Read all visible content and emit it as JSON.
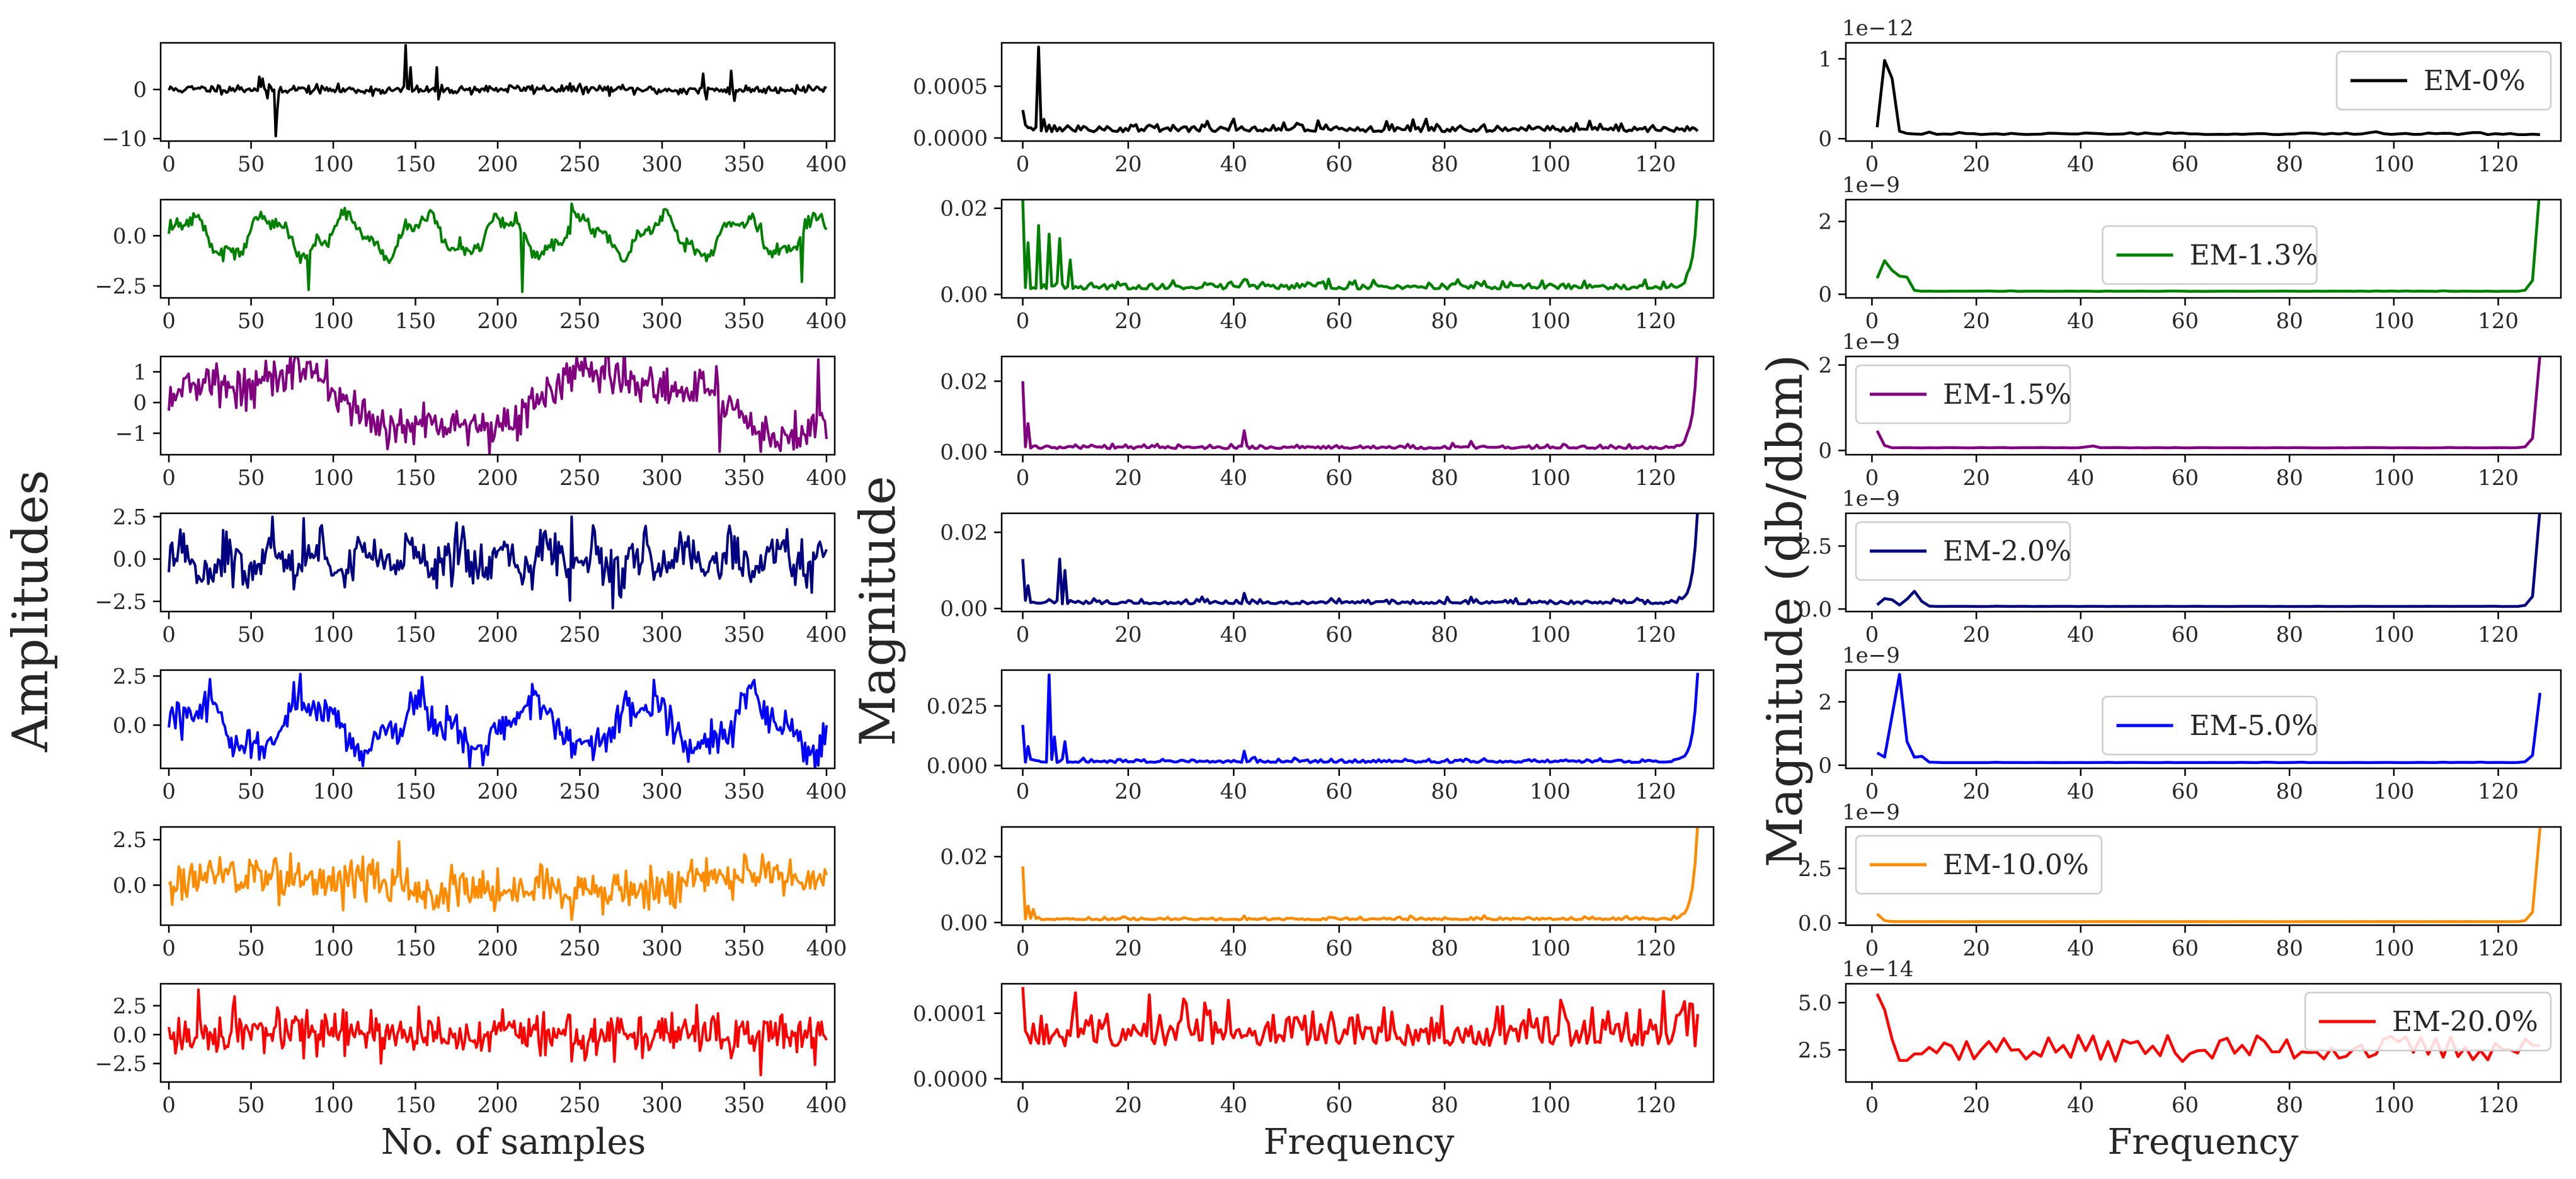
{
  "chart_data": {
    "type": "line",
    "title": "",
    "layout": "grid of 7 rows by 3 columns; columns: time-domain signal, frequency spectrum, power spectrum",
    "ylabels": {
      "col1": "Amplitudes",
      "col2": "Magnitude",
      "col3": "Magnitude (db/dbm)"
    },
    "xlabels": {
      "col1": "No. of samples",
      "col2": "Frequency",
      "col3": "Frequency"
    },
    "x_ticks_time": [
      "0",
      "50",
      "100",
      "150",
      "200",
      "250",
      "300",
      "350",
      "400"
    ],
    "x_ticks_freq": [
      "0",
      "20",
      "40",
      "60",
      "80",
      "100",
      "120"
    ],
    "rows": [
      {
        "label": "EM-0%",
        "color": "#000000",
        "legend_pos": "top-right",
        "time": {
          "xlim": [
            -5,
            405
          ],
          "ylim": [
            -10.5,
            9.5
          ],
          "yticks": [
            0,
            -10
          ],
          "ytick_labels": [
            "0",
            "−10"
          ],
          "base_amplitude": 0.6,
          "noise": 0.45,
          "wave_amp": 0,
          "wave_period": 120,
          "seed": 11,
          "spikes": [
            [
              65,
              -9.5
            ],
            [
              66,
              -4
            ],
            [
              144,
              9
            ],
            [
              147,
              4.5
            ],
            [
              163,
              4.5
            ],
            [
              164,
              -2
            ],
            [
              55,
              2.6
            ],
            [
              57,
              2.2
            ],
            [
              60,
              -1.8
            ],
            [
              325,
              3.2
            ],
            [
              327,
              -2
            ],
            [
              342,
              3.8
            ],
            [
              344,
              -2.3
            ]
          ]
        },
        "freq": {
          "xlim": [
            -4,
            131
          ],
          "ylim": [
            -3e-05,
            0.00092
          ],
          "yticks": [
            0,
            0.0005
          ],
          "ytick_labels": [
            "0.0000",
            "0.0005"
          ],
          "base": 6e-05,
          "noise": 4e-05,
          "seed": 21,
          "spikes": [
            [
              0,
              0.00027
            ],
            [
              1,
              0.0001
            ],
            [
              3,
              0.00088
            ],
            [
              4,
              0.00018
            ],
            [
              6,
              0.00012
            ]
          ],
          "tail": 0
        },
        "power": {
          "xlim": [
            -5,
            132
          ],
          "ylim": [
            -0.03,
            1.2
          ],
          "yticks": [
            0,
            1
          ],
          "ytick_labels": [
            "0",
            "1"
          ],
          "offset": "1e−12",
          "start": 1,
          "end": 128,
          "count": 90,
          "base": 0.05,
          "noise": 0.015,
          "seed": 31,
          "bumps": [
            [
              3,
              1.15,
              1.2
            ]
          ],
          "tail": 0
        }
      },
      {
        "label": "EM-1.3%",
        "color": "#008000",
        "legend_pos": "center",
        "time": {
          "xlim": [
            -5,
            405
          ],
          "ylim": [
            -3.1,
            1.8
          ],
          "yticks": [
            0,
            -2.5
          ],
          "ytick_labels": [
            "0.0",
            "−2.5"
          ],
          "base_amplitude": 0,
          "noise": 0.18,
          "wave_amp": 0.9,
          "wave_period": 48,
          "seed": 12,
          "spikes": [
            [
              85,
              -2.7
            ],
            [
              215,
              -2.8
            ],
            [
              245,
              1.6
            ],
            [
              385,
              -2.3
            ]
          ]
        },
        "freq": {
          "xlim": [
            -4,
            131
          ],
          "ylim": [
            -0.0008,
            0.022
          ],
          "yticks": [
            0,
            0.02
          ],
          "ytick_labels": [
            "0.00",
            "0.02"
          ],
          "base": 0.0012,
          "noise": 0.0008,
          "seed": 22,
          "spikes": [
            [
              0,
              0.022
            ],
            [
              1,
              0.012
            ],
            [
              3,
              0.016
            ],
            [
              5,
              0.014
            ],
            [
              7,
              0.013
            ],
            [
              9,
              0.008
            ],
            [
              42,
              0.0035
            ]
          ],
          "tail": 0.021
        },
        "power": {
          "xlim": [
            -5,
            132
          ],
          "ylim": [
            -0.1,
            2.6
          ],
          "yticks": [
            0,
            2
          ],
          "ytick_labels": [
            "0",
            "2"
          ],
          "offset": "1e−9",
          "start": 1,
          "end": 128,
          "count": 90,
          "base": 0.08,
          "noise": 0.005,
          "seed": 32,
          "bumps": [
            [
              1,
              0.3,
              1.5
            ],
            [
              3,
              0.9,
              1.2
            ],
            [
              6,
              0.55,
              1.2
            ]
          ],
          "tail": 2.9
        }
      },
      {
        "label": "EM-1.5%",
        "color": "#800080",
        "legend_pos": "top-left",
        "time": {
          "xlim": [
            -5,
            405
          ],
          "ylim": [
            -1.7,
            1.5
          ],
          "yticks": [
            1,
            0,
            -1
          ],
          "ytick_labels": [
            "1",
            "0",
            "−1"
          ],
          "base_amplitude": 0,
          "noise": 0.35,
          "wave_amp": 0.9,
          "wave_period": 220,
          "seed": 13,
          "spikes": [
            [
              335,
              -1.6
            ],
            [
              395,
              1.4
            ]
          ]
        },
        "freq": {
          "xlim": [
            -4,
            131
          ],
          "ylim": [
            -0.0008,
            0.027
          ],
          "yticks": [
            0,
            0.02
          ],
          "ytick_labels": [
            "0.00",
            "0.02"
          ],
          "base": 0.0009,
          "noise": 0.0005,
          "seed": 23,
          "spikes": [
            [
              0,
              0.02
            ],
            [
              1,
              0.008
            ],
            [
              42,
              0.006
            ],
            [
              85,
              0.003
            ]
          ],
          "tail": 0.029
        },
        "power": {
          "xlim": [
            -5,
            132
          ],
          "ylim": [
            -0.1,
            2.2
          ],
          "yticks": [
            0,
            2
          ],
          "ytick_labels": [
            "0",
            "2"
          ],
          "offset": "1e−9",
          "start": 1,
          "end": 128,
          "count": 90,
          "base": 0.06,
          "noise": 0.004,
          "seed": 33,
          "bumps": [
            [
              1,
              0.4,
              1.0
            ],
            [
              42,
              0.05,
              1.0
            ]
          ],
          "tail": 2.2
        }
      },
      {
        "label": "EM-2.0%",
        "color": "#000080",
        "legend_pos": "top-left",
        "time": {
          "xlim": [
            -5,
            405
          ],
          "ylim": [
            -3.1,
            2.7
          ],
          "yticks": [
            2.5,
            0,
            -2.5
          ],
          "ytick_labels": [
            "2.5",
            "0.0",
            "−2.5"
          ],
          "base_amplitude": 0,
          "noise": 0.65,
          "wave_amp": 0.8,
          "wave_period": 28,
          "seed": 14,
          "spikes": [
            [
              82,
              2.4
            ],
            [
              245,
              2.5
            ],
            [
              270,
              -2.9
            ]
          ]
        },
        "freq": {
          "xlim": [
            -4,
            131
          ],
          "ylim": [
            -0.0008,
            0.025
          ],
          "yticks": [
            0,
            0.02
          ],
          "ytick_labels": [
            "0.00",
            "0.02"
          ],
          "base": 0.0012,
          "noise": 0.0006,
          "seed": 24,
          "spikes": [
            [
              0,
              0.013
            ],
            [
              1,
              0.006
            ],
            [
              7,
              0.013
            ],
            [
              8,
              0.01
            ],
            [
              42,
              0.004
            ],
            [
              85,
              0.003
            ]
          ],
          "tail": 0.025
        },
        "power": {
          "xlim": [
            -5,
            132
          ],
          "ylim": [
            -0.1,
            3.8
          ],
          "yticks": [
            0,
            2.5
          ],
          "ytick_labels": [
            "0.0",
            "2.5"
          ],
          "offset": "1e−9",
          "start": 1,
          "end": 128,
          "count": 90,
          "base": 0.1,
          "noise": 0.006,
          "seed": 34,
          "bumps": [
            [
              3,
              0.35,
              1.5
            ],
            [
              8,
              0.6,
              1.5
            ]
          ],
          "tail": 3.9
        }
      },
      {
        "label": "EM-5.0%",
        "color": "#0000ff",
        "legend_pos": "center",
        "time": {
          "xlim": [
            -5,
            405
          ],
          "ylim": [
            -2.2,
            2.8
          ],
          "yticks": [
            2.5,
            0
          ],
          "ytick_labels": [
            "2.5",
            "0.0"
          ],
          "base_amplitude": 0,
          "noise": 0.45,
          "wave_amp": 1.1,
          "wave_period": 68,
          "seed": 15,
          "spikes": [
            [
              80,
              2.6
            ],
            [
              295,
              2.3
            ]
          ]
        },
        "freq": {
          "xlim": [
            -4,
            131
          ],
          "ylim": [
            -0.0012,
            0.04
          ],
          "yticks": [
            0,
            0.025
          ],
          "ytick_labels": [
            "0.000",
            "0.025"
          ],
          "base": 0.0012,
          "noise": 0.0007,
          "seed": 25,
          "spikes": [
            [
              0,
              0.017
            ],
            [
              1,
              0.008
            ],
            [
              5,
              0.038
            ],
            [
              6,
              0.012
            ],
            [
              8,
              0.01
            ],
            [
              42,
              0.006
            ]
          ],
          "tail": 0.037
        },
        "power": {
          "xlim": [
            -5,
            132
          ],
          "ylim": [
            -0.1,
            3.0
          ],
          "yticks": [
            0,
            2
          ],
          "ytick_labels": [
            "0",
            "2"
          ],
          "offset": "1e−9",
          "start": 1,
          "end": 128,
          "count": 90,
          "base": 0.08,
          "noise": 0.006,
          "seed": 35,
          "bumps": [
            [
              1,
              0.3,
              1.2
            ],
            [
              5,
              2.9,
              1.4
            ],
            [
              9,
              0.25,
              1.2
            ]
          ],
          "tail": 2.2
        }
      },
      {
        "label": "EM-10.0%",
        "color": "#ff8c00",
        "legend_pos": "top-left",
        "time": {
          "xlim": [
            -5,
            405
          ],
          "ylim": [
            -2.2,
            3.2
          ],
          "yticks": [
            2.5,
            0
          ],
          "ytick_labels": [
            "2.5",
            "0.0"
          ],
          "base_amplitude": 0.5,
          "noise": 0.6,
          "wave_amp": 0.5,
          "wave_period": 300,
          "seed": 16,
          "spikes": [
            [
              140,
              2.4
            ],
            [
              245,
              -1.9
            ]
          ]
        },
        "freq": {
          "xlim": [
            -4,
            131
          ],
          "ylim": [
            -0.0008,
            0.029
          ],
          "yticks": [
            0,
            0.02
          ],
          "ytick_labels": [
            "0.00",
            "0.02"
          ],
          "base": 0.0008,
          "noise": 0.0004,
          "seed": 26,
          "spikes": [
            [
              0,
              0.017
            ],
            [
              1,
              0.005
            ],
            [
              2,
              0.004
            ],
            [
              42,
              0.002
            ]
          ],
          "tail": 0.029
        },
        "power": {
          "xlim": [
            -5,
            132
          ],
          "ylim": [
            -0.1,
            4.4
          ],
          "yticks": [
            0,
            2.5
          ],
          "ytick_labels": [
            "0.0",
            "2.5"
          ],
          "offset": "1e−9",
          "start": 1,
          "end": 128,
          "count": 90,
          "base": 0.06,
          "noise": 0.003,
          "seed": 36,
          "bumps": [
            [
              1,
              0.35,
              1.0
            ]
          ],
          "tail": 4.3
        }
      },
      {
        "label": "EM-20.0%",
        "color": "#ff0000",
        "legend_pos": "top-right",
        "time": {
          "xlim": [
            -5,
            405
          ],
          "ylim": [
            -4.1,
            4.4
          ],
          "yticks": [
            2.5,
            0,
            -2.5
          ],
          "ytick_labels": [
            "2.5",
            "0.0",
            "−2.5"
          ],
          "base_amplitude": 0,
          "noise": 0.9,
          "wave_amp": 0,
          "wave_period": 100,
          "seed": 17,
          "spikes": [
            [
              18,
              3.9
            ],
            [
              40,
              3.3
            ],
            [
              360,
              -3.5
            ]
          ]
        },
        "freq": {
          "xlim": [
            -4,
            131
          ],
          "ylim": [
            -5e-06,
            0.000145
          ],
          "yticks": [
            0,
            0.0001
          ],
          "ytick_labels": [
            "0.0000",
            "0.0001"
          ],
          "base": 5e-05,
          "noise": 3e-05,
          "seed": 27,
          "spikes": [
            [
              0,
              0.00014
            ],
            [
              102,
              0.00012
            ]
          ],
          "tail": 0
        },
        "power": {
          "xlim": [
            -5,
            132
          ],
          "ylim": [
            0.8,
            6.0
          ],
          "yticks": [
            5,
            2.5
          ],
          "ytick_labels": [
            "5.0",
            "2.5"
          ],
          "offset": "1e−14",
          "start": 1,
          "end": 128,
          "count": 90,
          "base": 2.3,
          "noise": 1.4,
          "seed": 37,
          "bumps": [
            [
              1,
              3.2,
              1.0
            ],
            [
              3,
              2.0,
              1.0
            ]
          ],
          "tail": 0
        }
      }
    ]
  }
}
